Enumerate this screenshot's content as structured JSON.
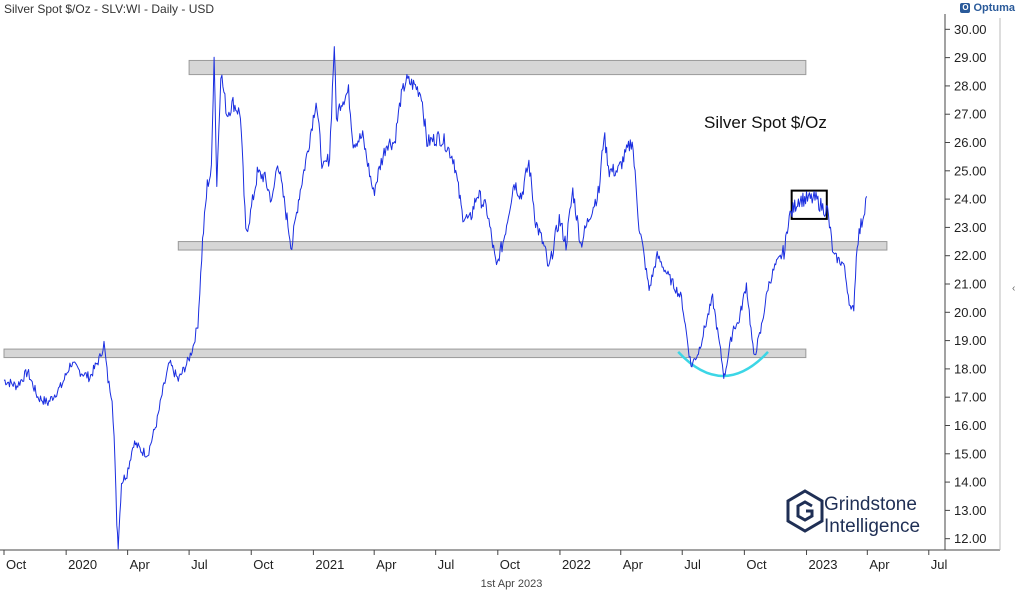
{
  "header": {
    "title": "Silver Spot $/Oz - SLV:WI - Daily - USD",
    "logo_text": "Optuma"
  },
  "footer": {
    "date": "1st Apr 2023"
  },
  "brand": {
    "line1": "Grindstone",
    "line2": "Intelligence"
  },
  "colors": {
    "line": "#1a2ee0",
    "zone": "#d6d6d6",
    "bowl": "#3cd6e6",
    "box": "#000000"
  },
  "chart_data": {
    "type": "line",
    "title": "Silver Spot $/Oz",
    "xlabel": "",
    "ylabel": "",
    "ylim": [
      11.6,
      30.4
    ],
    "x_range": [
      "2019-10-01",
      "2023-07-25"
    ],
    "y_ticks": [
      "12.00",
      "13.00",
      "14.00",
      "15.00",
      "16.00",
      "17.00",
      "18.00",
      "19.00",
      "20.00",
      "21.00",
      "22.00",
      "23.00",
      "24.00",
      "25.00",
      "26.00",
      "27.00",
      "28.00",
      "29.00",
      "30.00"
    ],
    "x_ticks": [
      {
        "label": "Oct",
        "date": "2019-10-01"
      },
      {
        "label": "2020",
        "date": "2020-01-01"
      },
      {
        "label": "Apr",
        "date": "2020-04-01"
      },
      {
        "label": "Jul",
        "date": "2020-07-01"
      },
      {
        "label": "Oct",
        "date": "2020-10-01"
      },
      {
        "label": "2021",
        "date": "2021-01-01"
      },
      {
        "label": "Apr",
        "date": "2021-04-01"
      },
      {
        "label": "Jul",
        "date": "2021-07-01"
      },
      {
        "label": "Oct",
        "date": "2021-10-01"
      },
      {
        "label": "2022",
        "date": "2022-01-01"
      },
      {
        "label": "Apr",
        "date": "2022-04-01"
      },
      {
        "label": "Jul",
        "date": "2022-07-01"
      },
      {
        "label": "Oct",
        "date": "2022-10-01"
      },
      {
        "label": "2023",
        "date": "2023-01-01"
      },
      {
        "label": "Apr",
        "date": "2023-04-01"
      },
      {
        "label": "Jul",
        "date": "2023-07-01"
      }
    ],
    "series": [
      {
        "values": [
          [
            "2019-10-01",
            17.6
          ],
          [
            "2019-10-20",
            17.4
          ],
          [
            "2019-11-05",
            17.9
          ],
          [
            "2019-11-20",
            17.0
          ],
          [
            "2019-12-05",
            16.8
          ],
          [
            "2019-12-25",
            17.4
          ],
          [
            "2020-01-08",
            18.2
          ],
          [
            "2020-01-22",
            17.9
          ],
          [
            "2020-02-05",
            17.7
          ],
          [
            "2020-02-20",
            18.4
          ],
          [
            "2020-02-26",
            18.9
          ],
          [
            "2020-03-03",
            17.6
          ],
          [
            "2020-03-09",
            17.0
          ],
          [
            "2020-03-12",
            15.6
          ],
          [
            "2020-03-16",
            12.6
          ],
          [
            "2020-03-18",
            11.8
          ],
          [
            "2020-03-23",
            14.0
          ],
          [
            "2020-03-31",
            14.3
          ],
          [
            "2020-04-10",
            15.4
          ],
          [
            "2020-04-22",
            15.1
          ],
          [
            "2020-05-01",
            15.0
          ],
          [
            "2020-05-15",
            16.2
          ],
          [
            "2020-05-22",
            17.1
          ],
          [
            "2020-06-02",
            18.2
          ],
          [
            "2020-06-15",
            17.6
          ],
          [
            "2020-06-30",
            18.3
          ],
          [
            "2020-07-07",
            18.8
          ],
          [
            "2020-07-14",
            19.6
          ],
          [
            "2020-07-21",
            22.5
          ],
          [
            "2020-07-28",
            24.5
          ],
          [
            "2020-08-03",
            25.0
          ],
          [
            "2020-08-07",
            29.2
          ],
          [
            "2020-08-11",
            24.5
          ],
          [
            "2020-08-17",
            28.5
          ],
          [
            "2020-08-26",
            27.0
          ],
          [
            "2020-09-04",
            27.4
          ],
          [
            "2020-09-15",
            27.0
          ],
          [
            "2020-09-23",
            22.8
          ],
          [
            "2020-09-30",
            23.5
          ],
          [
            "2020-10-10",
            24.9
          ],
          [
            "2020-10-20",
            24.8
          ],
          [
            "2020-11-01",
            23.9
          ],
          [
            "2020-11-09",
            25.4
          ],
          [
            "2020-11-16",
            24.3
          ],
          [
            "2020-11-30",
            22.3
          ],
          [
            "2020-12-10",
            24.0
          ],
          [
            "2020-12-22",
            25.5
          ],
          [
            "2021-01-05",
            27.5
          ],
          [
            "2021-01-15",
            25.0
          ],
          [
            "2021-01-25",
            25.5
          ],
          [
            "2021-02-01",
            29.5
          ],
          [
            "2021-02-04",
            26.8
          ],
          [
            "2021-02-10",
            27.4
          ],
          [
            "2021-02-22",
            27.8
          ],
          [
            "2021-03-01",
            26.0
          ],
          [
            "2021-03-15",
            26.2
          ],
          [
            "2021-03-31",
            24.2
          ],
          [
            "2021-04-10",
            25.2
          ],
          [
            "2021-04-20",
            26.0
          ],
          [
            "2021-05-01",
            26.0
          ],
          [
            "2021-05-10",
            27.5
          ],
          [
            "2021-05-18",
            28.2
          ],
          [
            "2021-06-01",
            28.0
          ],
          [
            "2021-06-10",
            27.7
          ],
          [
            "2021-06-18",
            26.0
          ],
          [
            "2021-06-28",
            26.1
          ],
          [
            "2021-07-06",
            26.2
          ],
          [
            "2021-07-15",
            26.0
          ],
          [
            "2021-07-28",
            25.4
          ],
          [
            "2021-08-09",
            23.5
          ],
          [
            "2021-08-20",
            23.2
          ],
          [
            "2021-09-01",
            24.2
          ],
          [
            "2021-09-15",
            23.6
          ],
          [
            "2021-09-29",
            21.6
          ],
          [
            "2021-10-10",
            22.6
          ],
          [
            "2021-10-25",
            24.6
          ],
          [
            "2021-11-05",
            24.1
          ],
          [
            "2021-11-16",
            25.3
          ],
          [
            "2021-11-26",
            23.2
          ],
          [
            "2021-12-10",
            22.2
          ],
          [
            "2021-12-15",
            21.5
          ],
          [
            "2021-12-31",
            23.3
          ],
          [
            "2022-01-10",
            22.4
          ],
          [
            "2022-01-20",
            24.3
          ],
          [
            "2022-02-01",
            22.4
          ],
          [
            "2022-02-15",
            23.5
          ],
          [
            "2022-02-28",
            24.3
          ],
          [
            "2022-03-07",
            26.3
          ],
          [
            "2022-03-15",
            25.0
          ],
          [
            "2022-03-28",
            25.0
          ],
          [
            "2022-04-18",
            26.1
          ],
          [
            "2022-04-28",
            23.1
          ],
          [
            "2022-05-13",
            20.8
          ],
          [
            "2022-05-25",
            22.0
          ],
          [
            "2022-06-10",
            21.3
          ],
          [
            "2022-06-30",
            20.5
          ],
          [
            "2022-07-14",
            18.1
          ],
          [
            "2022-07-25",
            18.6
          ],
          [
            "2022-08-15",
            20.5
          ],
          [
            "2022-08-31",
            17.9
          ],
          [
            "2022-09-01",
            17.7
          ],
          [
            "2022-09-15",
            19.5
          ],
          [
            "2022-09-22",
            19.6
          ],
          [
            "2022-10-04",
            21.0
          ],
          [
            "2022-10-15",
            18.4
          ],
          [
            "2022-10-25",
            19.3
          ],
          [
            "2022-11-05",
            20.9
          ],
          [
            "2022-11-15",
            21.6
          ],
          [
            "2022-11-30",
            22.2
          ],
          [
            "2022-12-05",
            23.3
          ],
          [
            "2022-12-20",
            24.0
          ],
          [
            "2023-01-01",
            24.0
          ],
          [
            "2023-01-15",
            24.0
          ],
          [
            "2023-01-25",
            23.7
          ],
          [
            "2023-02-01",
            23.6
          ],
          [
            "2023-02-10",
            22.0
          ],
          [
            "2023-02-25",
            21.7
          ],
          [
            "2023-03-08",
            20.0
          ],
          [
            "2023-03-12",
            20.2
          ],
          [
            "2023-03-17",
            22.5
          ],
          [
            "2023-03-24",
            23.2
          ],
          [
            "2023-03-31",
            24.1
          ]
        ]
      }
    ],
    "zones": [
      {
        "from": "2020-07-01",
        "to": "2022-12-31",
        "y_low": 28.4,
        "y_high": 28.9
      },
      {
        "from": "2020-06-15",
        "to": "2023-04-30",
        "y_low": 22.2,
        "y_high": 22.5
      },
      {
        "from": "2019-10-01",
        "to": "2022-12-31",
        "y_low": 18.4,
        "y_high": 18.7
      }
    ],
    "box": {
      "from": "2022-12-10",
      "to": "2023-01-31",
      "y_low": 23.3,
      "y_high": 24.3
    }
  }
}
